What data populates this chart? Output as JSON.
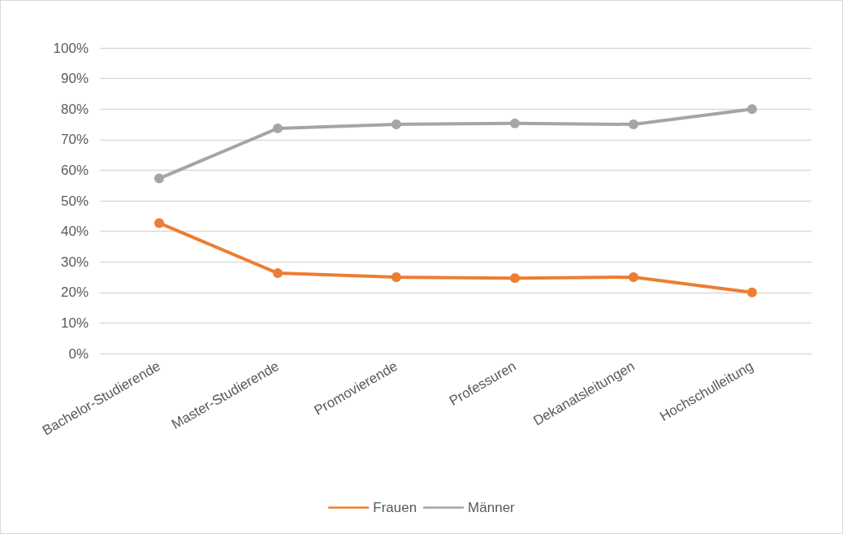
{
  "chart_data": {
    "type": "line",
    "categories": [
      "Bachelor-Studierende",
      "Master-Studierende",
      "Promovierende",
      "Professuren",
      "Dekanatsleitungen",
      "Hochschulleitung"
    ],
    "series": [
      {
        "name": "Frauen",
        "color": "#ed7d31",
        "values": [
          42.7,
          26.3,
          25.0,
          24.7,
          25.0,
          20.0
        ]
      },
      {
        "name": "Männer",
        "color": "#a5a5a5",
        "values": [
          57.3,
          73.7,
          75.0,
          75.3,
          75.0,
          80.0
        ]
      }
    ],
    "ylim": [
      0,
      100
    ],
    "yticks": [
      {
        "value": 0,
        "label": "0%"
      },
      {
        "value": 10,
        "label": "10%"
      },
      {
        "value": 20,
        "label": "20%"
      },
      {
        "value": 30,
        "label": "30%"
      },
      {
        "value": 40,
        "label": "40%"
      },
      {
        "value": 50,
        "label": "50%"
      },
      {
        "value": 60,
        "label": "60%"
      },
      {
        "value": 70,
        "label": "70%"
      },
      {
        "value": 80,
        "label": "80%"
      },
      {
        "value": 90,
        "label": "90%"
      },
      {
        "value": 100,
        "label": "100%"
      }
    ],
    "grid": "y",
    "legend": "bottom",
    "marker": "circle",
    "line_style": "solid"
  }
}
